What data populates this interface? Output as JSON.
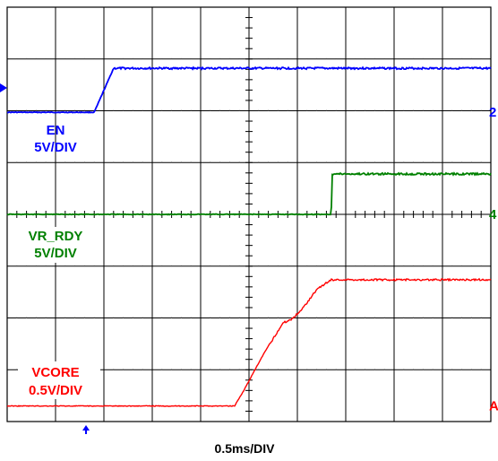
{
  "chart_data": {
    "type": "line",
    "title": "",
    "xlabel": "0.5ms/DIV",
    "ylabel": "",
    "grid": true,
    "divisions": {
      "x": 10,
      "y": 8
    },
    "x_unit_per_div": "0.5ms",
    "x": [
      0,
      0.5,
      1.0,
      1.5,
      2.0,
      2.5,
      3.0,
      3.5,
      4.0,
      4.5,
      5.0
    ],
    "series": [
      {
        "name": "EN",
        "scale": "5V/DIV",
        "color": "#0000ff",
        "channel_marker": "2",
        "points": [
          [
            0.0,
            0.0
          ],
          [
            0.9,
            0.0
          ],
          [
            1.1,
            1.0
          ],
          [
            5.0,
            1.0
          ]
        ]
      },
      {
        "name": "VR_RDY",
        "scale": "5V/DIV",
        "color": "#008000",
        "channel_marker": "4",
        "points": [
          [
            0.0,
            0.0
          ],
          [
            3.35,
            0.0
          ],
          [
            3.36,
            1.0
          ],
          [
            5.0,
            1.0
          ]
        ]
      },
      {
        "name": "VCORE",
        "scale": "0.5V/DIV",
        "color": "#ff0000",
        "channel_marker": "A",
        "points": [
          [
            0.0,
            0.0
          ],
          [
            2.35,
            0.0
          ],
          [
            2.45,
            0.25
          ],
          [
            2.65,
            0.8
          ],
          [
            2.85,
            1.28
          ],
          [
            2.95,
            1.35
          ],
          [
            3.05,
            1.5
          ],
          [
            3.2,
            1.8
          ],
          [
            3.35,
            1.95
          ],
          [
            5.0,
            1.95
          ]
        ]
      }
    ]
  }
}
